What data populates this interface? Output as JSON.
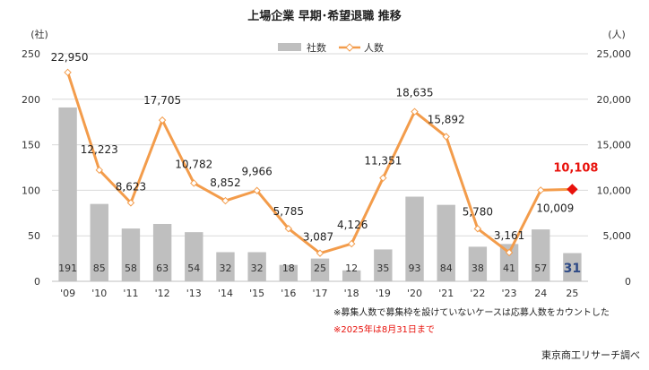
{
  "chart_data": {
    "type": "bar",
    "title": "上場企業 早期･希望退職 推移",
    "categories": [
      "'09",
      "'10",
      "'11",
      "'12",
      "'13",
      "'14",
      "'15",
      "'16",
      "'17",
      "'18",
      "'19",
      "'20",
      "'21",
      "'22",
      "'23",
      "24",
      "25"
    ],
    "series": [
      {
        "name": "社数",
        "type": "bar",
        "axis": "left",
        "color": "#bfbfbf",
        "values": [
          191,
          85,
          58,
          63,
          54,
          32,
          32,
          18,
          25,
          12,
          35,
          93,
          84,
          38,
          41,
          57,
          31
        ],
        "labels": [
          "191",
          "85",
          "58",
          "63",
          "54",
          "32",
          "32",
          "18",
          "25",
          "12",
          "35",
          "93",
          "84",
          "38",
          "41",
          "57",
          "31"
        ]
      },
      {
        "name": "人数",
        "type": "line",
        "axis": "right",
        "color": "#f39c4b",
        "values": [
          22950,
          12223,
          8623,
          17705,
          10782,
          8852,
          9966,
          5785,
          3087,
          4126,
          11351,
          18635,
          15892,
          5780,
          3161,
          10009,
          10108
        ],
        "labels": [
          "22,950",
          "12,223",
          "8,623",
          "17,705",
          "10,782",
          "8,852",
          "9,966",
          "5,785",
          "3,087",
          "4,126",
          "11,351",
          "18,635",
          "15,892",
          "5,780",
          "3,161",
          "10,009",
          "10,108"
        ]
      }
    ],
    "y_left": {
      "unit": "(社)",
      "ylim": [
        0,
        250
      ],
      "ticks": [
        0,
        50,
        100,
        150,
        200,
        250
      ],
      "tick_labels": [
        "0",
        "50",
        "100",
        "150",
        "200",
        "250"
      ]
    },
    "y_right": {
      "unit": "(人)",
      "ylim": [
        0,
        25000
      ],
      "ticks": [
        0,
        5000,
        10000,
        15000,
        20000,
        25000
      ],
      "tick_labels": [
        "0",
        "5,000",
        "10,000",
        "15,000",
        "20,000",
        "25,000"
      ]
    },
    "grid": true,
    "legend_position": "top-center",
    "highlight_last": true,
    "highlight_bar_color": "#2e4a86",
    "highlight_point_color": "#e8120c",
    "notes": [
      {
        "text": "※募集人数で募集枠を設けていないケースは応募人数をカウントした",
        "color": "#222222"
      },
      {
        "text": "※2025年は8月31日まで",
        "color": "#e8120c"
      }
    ],
    "source": "東京商工リサーチ調べ"
  }
}
